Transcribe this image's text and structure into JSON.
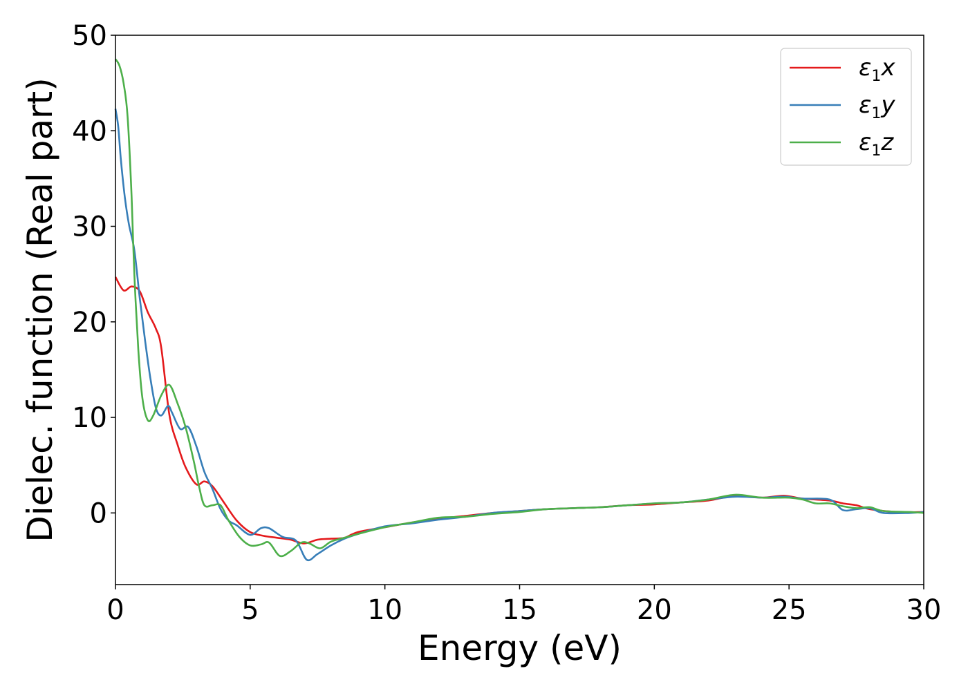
{
  "chart_data": {
    "type": "line",
    "xlabel": "Energy (eV)",
    "ylabel": "Dielec. function (Real part)",
    "xlim": [
      0,
      30
    ],
    "ylim": [
      -7.5,
      50
    ],
    "x_ticks": [
      0,
      5,
      10,
      15,
      20,
      25,
      30
    ],
    "y_ticks": [
      0,
      10,
      20,
      30,
      40,
      50
    ],
    "grid": false,
    "legend_position": "top-right",
    "series": [
      {
        "name": "ε1x",
        "label_base": "ε",
        "label_sub": "1",
        "label_var": "x",
        "color": "#e41a1c",
        "points": [
          [
            0,
            24.7
          ],
          [
            0.3,
            23.3
          ],
          [
            0.6,
            23.7
          ],
          [
            0.9,
            23.2
          ],
          [
            1.2,
            21.0
          ],
          [
            1.5,
            19.3
          ],
          [
            1.7,
            17.3
          ],
          [
            2.0,
            10.3
          ],
          [
            2.3,
            7.2
          ],
          [
            2.6,
            4.8
          ],
          [
            3.0,
            3.0
          ],
          [
            3.3,
            3.3
          ],
          [
            3.6,
            2.8
          ],
          [
            4.0,
            1.2
          ],
          [
            4.5,
            -0.8
          ],
          [
            5.0,
            -2.0
          ],
          [
            5.5,
            -2.4
          ],
          [
            6.0,
            -2.6
          ],
          [
            6.5,
            -2.8
          ],
          [
            7.0,
            -3.2
          ],
          [
            7.5,
            -2.8
          ],
          [
            8.0,
            -2.7
          ],
          [
            8.5,
            -2.6
          ],
          [
            9.0,
            -2.0
          ],
          [
            10.0,
            -1.5
          ],
          [
            11.0,
            -1.0
          ],
          [
            12.0,
            -0.6
          ],
          [
            13.0,
            -0.3
          ],
          [
            14.0,
            0.0
          ],
          [
            15.0,
            0.2
          ],
          [
            16.0,
            0.4
          ],
          [
            17.0,
            0.5
          ],
          [
            18.0,
            0.6
          ],
          [
            19.0,
            0.8
          ],
          [
            20.0,
            0.9
          ],
          [
            21.0,
            1.1
          ],
          [
            22.0,
            1.3
          ],
          [
            23.0,
            1.8
          ],
          [
            24.0,
            1.6
          ],
          [
            24.8,
            1.8
          ],
          [
            25.5,
            1.5
          ],
          [
            26.5,
            1.3
          ],
          [
            27.0,
            1.0
          ],
          [
            27.5,
            0.8
          ],
          [
            28.0,
            0.4
          ],
          [
            29.0,
            0.1
          ],
          [
            30.0,
            0.1
          ]
        ]
      },
      {
        "name": "ε1y",
        "label_base": "ε",
        "label_sub": "1",
        "label_var": "y",
        "color": "#377eb8",
        "points": [
          [
            0,
            42.3
          ],
          [
            0.1,
            40.5
          ],
          [
            0.2,
            37.0
          ],
          [
            0.35,
            33.0
          ],
          [
            0.5,
            30.2
          ],
          [
            0.7,
            27.5
          ],
          [
            0.9,
            22.5
          ],
          [
            1.1,
            18.0
          ],
          [
            1.3,
            14.0
          ],
          [
            1.5,
            11.0
          ],
          [
            1.7,
            10.2
          ],
          [
            1.95,
            11.2
          ],
          [
            2.1,
            10.5
          ],
          [
            2.4,
            8.8
          ],
          [
            2.7,
            9.0
          ],
          [
            3.0,
            7.0
          ],
          [
            3.3,
            4.3
          ],
          [
            3.6,
            2.5
          ],
          [
            3.9,
            0.4
          ],
          [
            4.2,
            -0.8
          ],
          [
            4.5,
            -1.3
          ],
          [
            5.0,
            -2.3
          ],
          [
            5.4,
            -1.6
          ],
          [
            5.7,
            -1.6
          ],
          [
            6.2,
            -2.5
          ],
          [
            6.7,
            -2.9
          ],
          [
            7.1,
            -4.9
          ],
          [
            7.5,
            -4.3
          ],
          [
            8.0,
            -3.4
          ],
          [
            8.5,
            -2.7
          ],
          [
            9.0,
            -2.2
          ],
          [
            10.0,
            -1.4
          ],
          [
            11.0,
            -1.1
          ],
          [
            12.0,
            -0.7
          ],
          [
            13.0,
            -0.4
          ],
          [
            14.0,
            0.0
          ],
          [
            15.0,
            0.2
          ],
          [
            16.0,
            0.4
          ],
          [
            17.0,
            0.5
          ],
          [
            18.0,
            0.6
          ],
          [
            19.0,
            0.8
          ],
          [
            20.0,
            1.0
          ],
          [
            21.0,
            1.1
          ],
          [
            22.0,
            1.4
          ],
          [
            23.0,
            1.7
          ],
          [
            24.0,
            1.6
          ],
          [
            24.8,
            1.7
          ],
          [
            25.5,
            1.5
          ],
          [
            26.5,
            1.4
          ],
          [
            27.0,
            0.3
          ],
          [
            27.5,
            0.4
          ],
          [
            28.0,
            0.5
          ],
          [
            28.5,
            0.0
          ],
          [
            29.5,
            0.0
          ],
          [
            30.0,
            0.1
          ]
        ]
      },
      {
        "name": "ε1z",
        "label_base": "ε",
        "label_sub": "1",
        "label_var": "z",
        "color": "#4daf4a",
        "points": [
          [
            0,
            47.5
          ],
          [
            0.15,
            46.8
          ],
          [
            0.3,
            45.0
          ],
          [
            0.45,
            41.5
          ],
          [
            0.6,
            33.0
          ],
          [
            0.7,
            25.0
          ],
          [
            0.85,
            17.0
          ],
          [
            1.0,
            12.0
          ],
          [
            1.2,
            9.7
          ],
          [
            1.4,
            10.2
          ],
          [
            1.7,
            12.3
          ],
          [
            2.0,
            13.4
          ],
          [
            2.3,
            11.5
          ],
          [
            2.6,
            9.0
          ],
          [
            2.9,
            5.5
          ],
          [
            3.1,
            2.8
          ],
          [
            3.3,
            0.8
          ],
          [
            3.6,
            0.8
          ],
          [
            3.9,
            0.8
          ],
          [
            4.2,
            -0.8
          ],
          [
            4.6,
            -2.5
          ],
          [
            5.0,
            -3.4
          ],
          [
            5.4,
            -3.3
          ],
          [
            5.7,
            -3.1
          ],
          [
            6.1,
            -4.5
          ],
          [
            6.5,
            -4.0
          ],
          [
            6.9,
            -3.1
          ],
          [
            7.2,
            -3.2
          ],
          [
            7.6,
            -3.7
          ],
          [
            8.0,
            -3.0
          ],
          [
            8.5,
            -2.6
          ],
          [
            9.0,
            -2.2
          ],
          [
            10.0,
            -1.5
          ],
          [
            11.0,
            -1.0
          ],
          [
            12.0,
            -0.5
          ],
          [
            13.0,
            -0.4
          ],
          [
            14.0,
            -0.1
          ],
          [
            15.0,
            0.1
          ],
          [
            16.0,
            0.4
          ],
          [
            17.0,
            0.5
          ],
          [
            18.0,
            0.6
          ],
          [
            19.0,
            0.8
          ],
          [
            20.0,
            1.0
          ],
          [
            21.0,
            1.1
          ],
          [
            22.0,
            1.4
          ],
          [
            23.0,
            1.9
          ],
          [
            24.0,
            1.6
          ],
          [
            25.0,
            1.6
          ],
          [
            25.5,
            1.4
          ],
          [
            26.0,
            1.0
          ],
          [
            26.5,
            1.0
          ],
          [
            27.0,
            0.7
          ],
          [
            27.5,
            0.5
          ],
          [
            28.0,
            0.6
          ],
          [
            28.5,
            0.2
          ],
          [
            29.5,
            0.1
          ],
          [
            30.0,
            0.0
          ]
        ]
      }
    ]
  }
}
